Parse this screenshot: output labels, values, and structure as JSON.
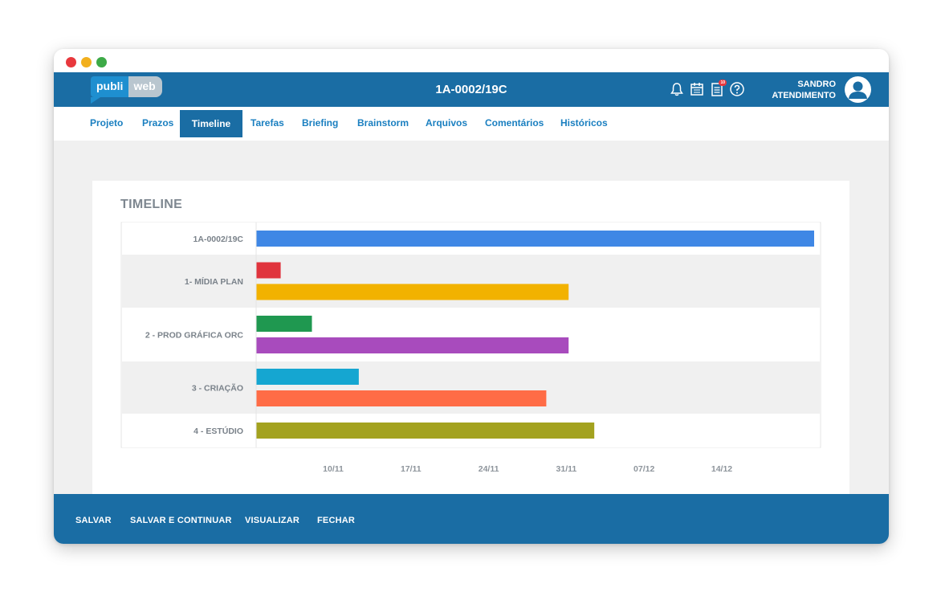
{
  "header": {
    "logo_part1": "publi",
    "logo_part2": "web",
    "title": "1A-0002/19C",
    "notification_badge": "10",
    "user_line1": "SANDRO",
    "user_line2": "ATENDIMENTO"
  },
  "tabs": [
    {
      "label": "Projeto",
      "active": false
    },
    {
      "label": "Prazos",
      "active": false
    },
    {
      "label": "Timeline",
      "active": true
    },
    {
      "label": "Tarefas",
      "active": false
    },
    {
      "label": "Briefing",
      "active": false
    },
    {
      "label": "Brainstorm",
      "active": false
    },
    {
      "label": "Arquivos",
      "active": false
    },
    {
      "label": "Comentários",
      "active": false
    },
    {
      "label": "Históricos",
      "active": false
    }
  ],
  "timeline_title": "TIMELINE",
  "footer": {
    "save": "SALVAR",
    "save_continue": "SALVAR E CONTINUAR",
    "preview": "VISUALIZAR",
    "close": "FECHAR"
  },
  "colors": {
    "primary": "#1a6da4",
    "tab_text": "#1a7fc0"
  },
  "chart_data": {
    "type": "timeline",
    "x_ticks": [
      "10/11",
      "17/11",
      "24/11",
      "31/11",
      "07/12",
      "14/12"
    ],
    "rows": [
      {
        "label": "1A-0002/19C",
        "bars": [
          {
            "start_day": 0,
            "end_day": 50,
            "color": "#3f87e5"
          }
        ]
      },
      {
        "label": "1- MÍDIA PLAN",
        "bars": [
          {
            "start_day": 0,
            "end_day": 2.2,
            "color": "#e0343d"
          },
          {
            "start_day": 0,
            "end_day": 28,
            "color": "#f2b200"
          }
        ]
      },
      {
        "label": "2 - PROD GRÁFICA ORC",
        "bars": [
          {
            "start_day": 0,
            "end_day": 5,
            "color": "#1f9850"
          },
          {
            "start_day": 0,
            "end_day": 28,
            "color": "#a84bbd"
          }
        ]
      },
      {
        "label": "3 - CRIAÇÃO",
        "bars": [
          {
            "start_day": 0,
            "end_day": 9.2,
            "color": "#15a6d1"
          },
          {
            "start_day": 0,
            "end_day": 26,
            "color": "#ff6c46"
          }
        ]
      },
      {
        "label": "4 - ESTÚDIO",
        "bars": [
          {
            "start_day": 0,
            "end_day": 30.3,
            "color": "#a3a21f"
          }
        ]
      }
    ]
  }
}
